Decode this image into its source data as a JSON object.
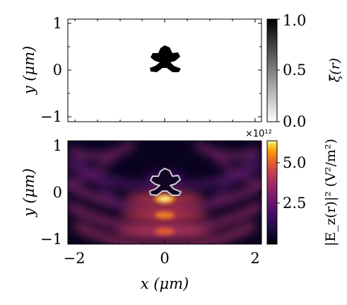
{
  "chart_data": [
    {
      "type": "heatmap",
      "title": "",
      "description_of_content": "binary design density, black star/cross-shaped structure near origin",
      "ylabel": "y (μm)",
      "xlabel": "",
      "xlim": [
        -2.1,
        2.1
      ],
      "ylim": [
        -1.1,
        1.1
      ],
      "yticks": [
        -1,
        0,
        1
      ],
      "ytick_labels": [
        "−1",
        "0",
        "1"
      ],
      "colorbar": {
        "label": "ξ̄(r)",
        "range": [
          0.0,
          1.0
        ],
        "ticks": [
          0.0,
          0.5,
          1.0
        ],
        "tick_labels": [
          "0.0",
          "0.5",
          "1.0"
        ],
        "colormap": "gray_r"
      },
      "structure_center": [
        0.0,
        0.28
      ]
    },
    {
      "type": "heatmap",
      "title": "",
      "xlabel": "x (μm)",
      "ylabel": "y (μm)",
      "xlim": [
        -2.1,
        2.1
      ],
      "ylim": [
        -1.1,
        1.1
      ],
      "xticks": [
        -2,
        0,
        2
      ],
      "xtick_labels": [
        "−2",
        "0",
        "2"
      ],
      "yticks": [
        -1,
        0,
        1
      ],
      "ytick_labels": [
        "−1",
        "0",
        "1"
      ],
      "colorbar": {
        "label": "|E_z(r)|² (V²/m²)",
        "multiplier": "×10¹²",
        "range": [
          0.0,
          6.3
        ],
        "ticks": [
          2.5,
          5.0
        ],
        "tick_labels": [
          "2.5",
          "5.0"
        ],
        "colormap": "inferno"
      },
      "hotspots": [
        {
          "x": 0.0,
          "y": 0.18,
          "value": 6.3
        },
        {
          "x": 0.0,
          "y": -0.3,
          "value": 5.0
        },
        {
          "x": 0.0,
          "y": -0.75,
          "value": 4.2
        }
      ]
    }
  ],
  "colors": {
    "inferno_low": "#000004",
    "inferno_mid": "#bc3754",
    "inferno_high": "#fcffa4",
    "outline": "#cfcfcf"
  }
}
